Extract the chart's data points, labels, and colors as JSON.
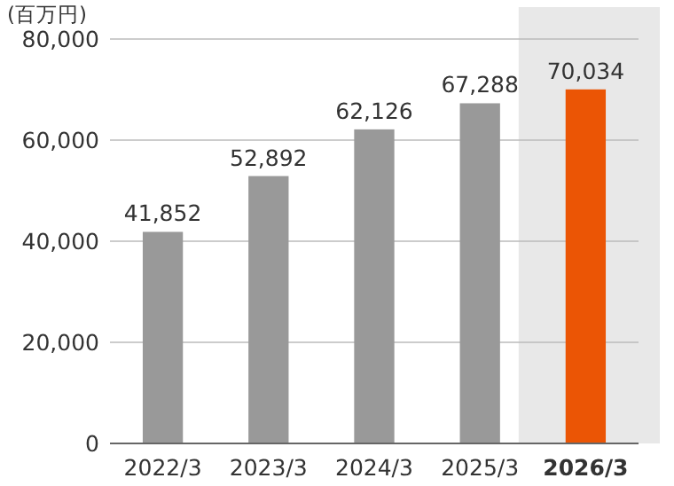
{
  "chart_data": {
    "type": "bar",
    "ylabel": "(百万円)",
    "categories": [
      "2022/3",
      "2023/3",
      "2024/3",
      "2025/3",
      "2026/3"
    ],
    "values": [
      41852,
      52892,
      62126,
      67288,
      70034
    ],
    "colors": [
      "#999999",
      "#999999",
      "#999999",
      "#999999",
      "#eb5505"
    ],
    "ylim": [
      0,
      80000
    ],
    "yticks": [
      0,
      {
        "value": 20000,
        "label": "20,000"
      },
      {
        "value": 40000,
        "label": "40,000"
      },
      {
        "value": 60000,
        "label": "60,000"
      },
      {
        "value": 80000,
        "label": "80,000"
      }
    ],
    "grid": "y",
    "value_labels": [
      "41,852",
      "52,892",
      "62,126",
      "67,288",
      "70,034"
    ]
  }
}
